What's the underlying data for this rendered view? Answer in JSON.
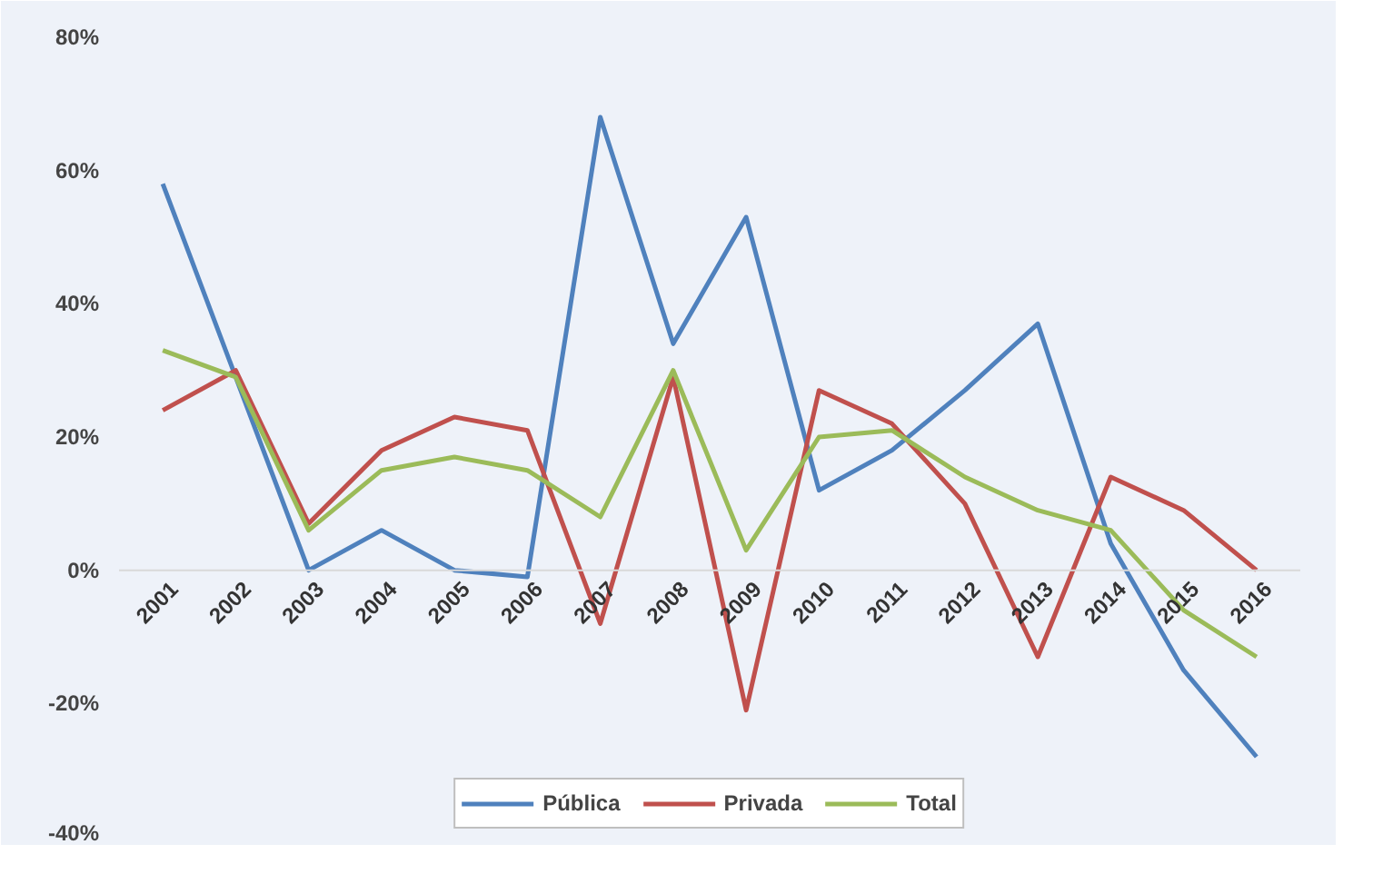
{
  "chart_data": {
    "type": "line",
    "categories": [
      "2001",
      "2002",
      "2003",
      "2004",
      "2005",
      "2006",
      "2007",
      "2008",
      "2009",
      "2010",
      "2011",
      "2012",
      "2013",
      "2014",
      "2015",
      "2016"
    ],
    "series": [
      {
        "name": "Pública",
        "color": "#4f81bd",
        "values": [
          58,
          29,
          0,
          6,
          0,
          -1,
          68,
          34,
          53,
          12,
          18,
          27,
          37,
          4,
          -15,
          -28
        ]
      },
      {
        "name": "Privada",
        "color": "#c0504d",
        "values": [
          24,
          30,
          7,
          18,
          23,
          21,
          -8,
          29,
          -21,
          27,
          22,
          10,
          -13,
          14,
          9,
          0
        ]
      },
      {
        "name": "Total",
        "color": "#9bbb59",
        "values": [
          33,
          29,
          6,
          15,
          17,
          15,
          8,
          30,
          3,
          20,
          21,
          14,
          9,
          6,
          -6,
          -13
        ]
      }
    ],
    "ylim": [
      -40,
      80
    ],
    "yticks": [
      {
        "value": -40,
        "label": "-40%"
      },
      {
        "value": -20,
        "label": "-20%"
      },
      {
        "value": 0,
        "label": "0%"
      },
      {
        "value": 20,
        "label": "20%"
      },
      {
        "value": 40,
        "label": "40%"
      },
      {
        "value": 60,
        "label": "60%"
      },
      {
        "value": 80,
        "label": "80%"
      }
    ],
    "legend": "bottom",
    "grid": false,
    "marker": "none",
    "line_style": "solid"
  }
}
